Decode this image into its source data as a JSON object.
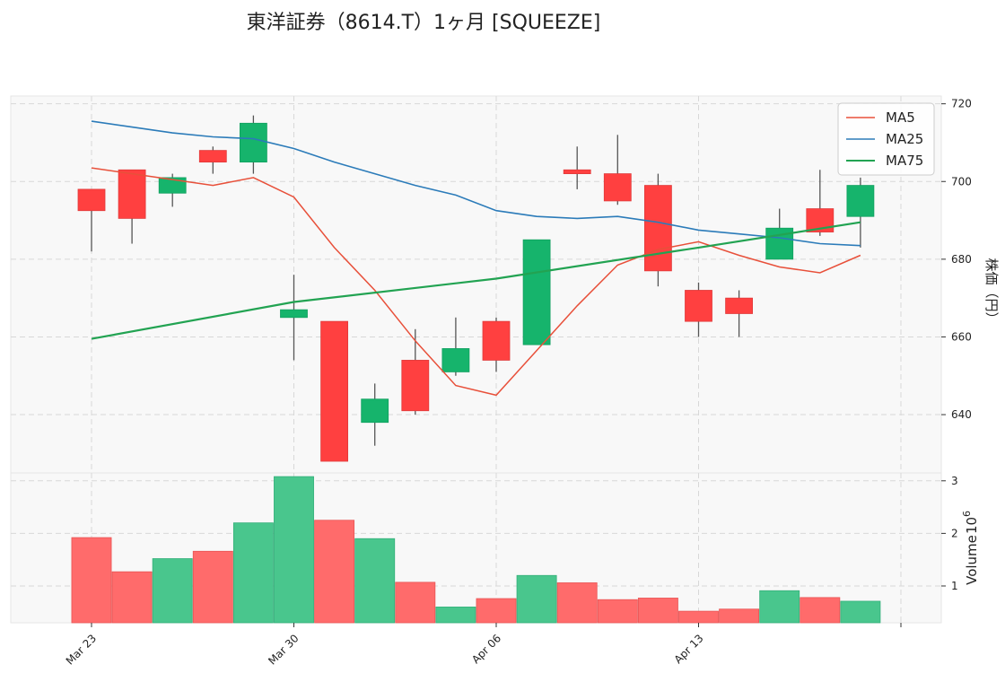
{
  "chart_data": {
    "type": "candlestick",
    "title": "東洋証券（8614.T）1ヶ月 [SQUEEZE]",
    "price_axis": {
      "label": "株価（円）",
      "ylim": [
        625,
        722
      ],
      "ticks": [
        640,
        660,
        680,
        700,
        720
      ]
    },
    "volume_axis": {
      "label": "Volume",
      "exponent_label": "10^6",
      "unit_multiplier": 1000000,
      "ylim": [
        0.3,
        3.15
      ],
      "ticks": [
        1,
        2,
        3
      ]
    },
    "x_tick_labels": [
      {
        "index": 0,
        "label": "Mar 23"
      },
      {
        "index": 5,
        "label": "Mar 30"
      },
      {
        "index": 10,
        "label": "Apr 06"
      },
      {
        "index": 15,
        "label": "Apr 13"
      }
    ],
    "grid": true,
    "legend_position": "top-right",
    "colors": {
      "up": "#16b46c",
      "down": "#ff4040",
      "ma5": "#e8503a",
      "ma25": "#2b7bb9",
      "ma75": "#22a352",
      "vol_up": "#49c68d",
      "vol_down": "#ff6b6b",
      "panel_bg": "#f8f8f8"
    },
    "candles": [
      {
        "i": 0,
        "open": 698,
        "high": 698,
        "low": 682,
        "close": 692.5
      },
      {
        "i": 1,
        "open": 703,
        "high": 703,
        "low": 684,
        "close": 690.5
      },
      {
        "i": 2,
        "open": 697,
        "high": 702,
        "low": 693.5,
        "close": 701
      },
      {
        "i": 3,
        "open": 708,
        "high": 709,
        "low": 702,
        "close": 705
      },
      {
        "i": 4,
        "open": 705,
        "high": 717,
        "low": 702,
        "close": 715
      },
      {
        "i": 5,
        "open": 665,
        "high": 676,
        "low": 654,
        "close": 667
      },
      {
        "i": 6,
        "open": 664,
        "high": 664,
        "low": 628,
        "close": 628
      },
      {
        "i": 7,
        "open": 638,
        "high": 648,
        "low": 632,
        "close": 644
      },
      {
        "i": 8,
        "open": 654,
        "high": 662,
        "low": 640,
        "close": 641
      },
      {
        "i": 9,
        "open": 651,
        "high": 665,
        "low": 650,
        "close": 657
      },
      {
        "i": 10,
        "open": 664,
        "high": 665,
        "low": 651,
        "close": 654
      },
      {
        "i": 11,
        "open": 658,
        "high": 685,
        "low": 658,
        "close": 685
      },
      {
        "i": 12,
        "open": 703,
        "high": 709,
        "low": 698,
        "close": 702
      },
      {
        "i": 13,
        "open": 702,
        "high": 712,
        "low": 694,
        "close": 695
      },
      {
        "i": 14,
        "open": 699,
        "high": 702,
        "low": 673,
        "close": 677
      },
      {
        "i": 15,
        "open": 672,
        "high": 674,
        "low": 660,
        "close": 664
      },
      {
        "i": 16,
        "open": 670,
        "high": 672,
        "low": 660,
        "close": 666
      },
      {
        "i": 17,
        "open": 680,
        "high": 693,
        "low": 680,
        "close": 688
      },
      {
        "i": 18,
        "open": 693,
        "high": 703,
        "low": 686,
        "close": 687
      },
      {
        "i": 19,
        "open": 691,
        "high": 701,
        "low": 683,
        "close": 699
      }
    ],
    "volume": [
      1.92,
      1.27,
      1.52,
      1.66,
      2.2,
      3.08,
      2.25,
      1.9,
      1.07,
      0.6,
      0.76,
      1.2,
      1.06,
      0.74,
      0.77,
      0.52,
      0.56,
      0.91,
      0.78,
      0.71
    ],
    "series": [
      {
        "name": "MA5",
        "x": [
          0,
          1,
          2,
          3,
          4,
          5,
          6,
          7,
          8,
          9,
          10,
          11,
          12,
          13,
          14,
          15,
          16,
          17,
          18,
          19
        ],
        "values": [
          703.5,
          702,
          700.5,
          699,
          701,
          696,
          683,
          672,
          659,
          647.5,
          645,
          656.5,
          668,
          678.5,
          682.5,
          684.5,
          681,
          678,
          676.5,
          681
        ]
      },
      {
        "name": "MA25",
        "x": [
          0,
          1,
          2,
          3,
          4,
          5,
          6,
          7,
          8,
          9,
          10,
          11,
          12,
          13,
          14,
          15,
          16,
          17,
          18,
          19
        ],
        "values": [
          715.5,
          714,
          712.5,
          711.5,
          711,
          708.5,
          705,
          702,
          699,
          696.5,
          692.5,
          691,
          690.5,
          691,
          689.5,
          687.5,
          686.5,
          685.5,
          684,
          683.5
        ]
      },
      {
        "name": "MA75",
        "x": [
          0,
          5,
          10,
          15,
          19
        ],
        "values": [
          659.5,
          669,
          675,
          683,
          689.5
        ]
      }
    ]
  }
}
